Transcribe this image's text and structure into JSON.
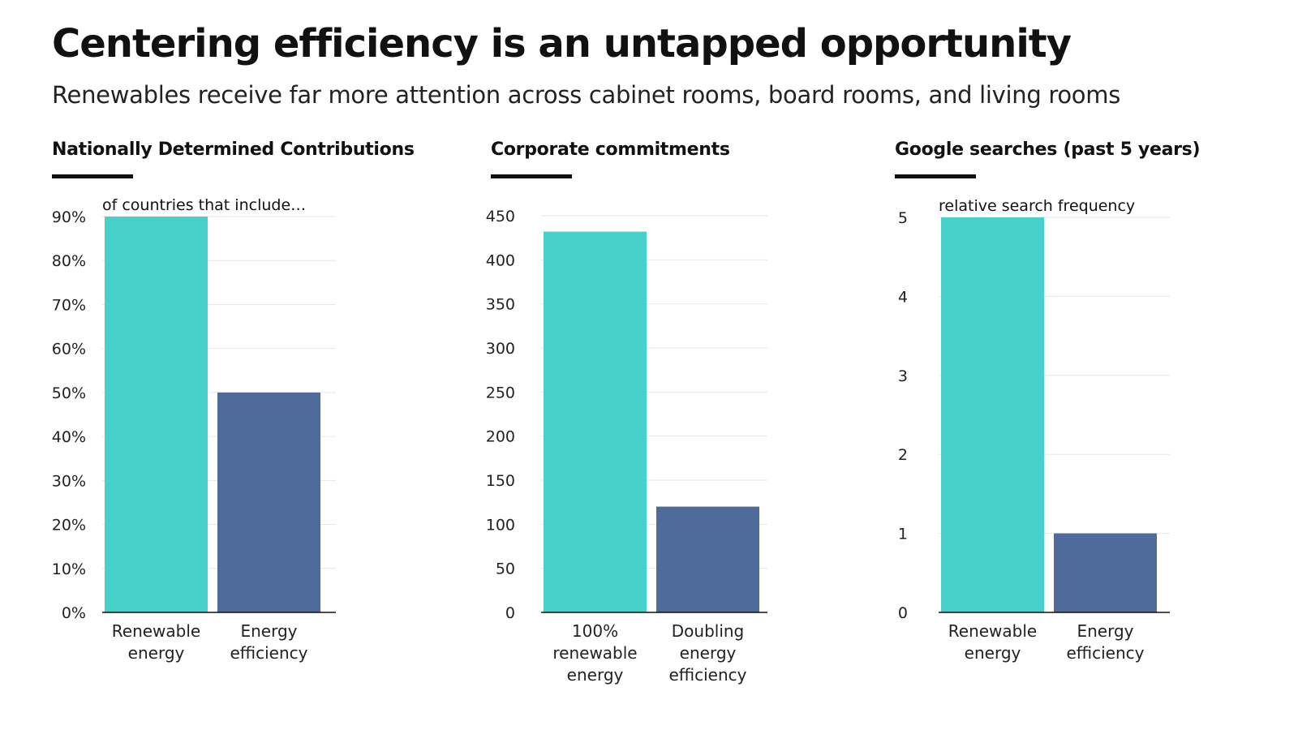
{
  "header": {
    "title": "Centering efficiency is an untapped opportunity",
    "subtitle": "Renewables receive far more attention across cabinet rooms, board rooms, and living rooms"
  },
  "colors": {
    "renewable": "#48D0CB",
    "efficiency": "#4E6B9B",
    "grid": "#e6e6e6",
    "axis": "#111111"
  },
  "chart_data": [
    {
      "type": "bar",
      "title": "Nationally Determined Contributions",
      "annotation": "of countries that include…",
      "categories": [
        [
          "Renewable",
          "energy"
        ],
        [
          "Energy",
          "efficiency"
        ]
      ],
      "values": [
        90,
        50
      ],
      "ylim": [
        0,
        90
      ],
      "yticks": [
        0,
        10,
        20,
        30,
        40,
        50,
        60,
        70,
        80,
        90
      ],
      "ytick_labels": [
        "0%",
        "10%",
        "20%",
        "30%",
        "40%",
        "50%",
        "60%",
        "70%",
        "80%",
        "90%"
      ],
      "grid": true
    },
    {
      "type": "bar",
      "title": "Corporate commitments",
      "annotation": "",
      "categories": [
        [
          "100%",
          "renewable",
          "energy"
        ],
        [
          "Doubling",
          "energy",
          "efficiency"
        ]
      ],
      "values": [
        432,
        120
      ],
      "ylim": [
        0,
        450
      ],
      "yticks": [
        0,
        50,
        100,
        150,
        200,
        250,
        300,
        350,
        400,
        450
      ],
      "ytick_labels": [
        "0",
        "50",
        "100",
        "150",
        "200",
        "250",
        "300",
        "350",
        "400",
        "450"
      ],
      "grid": true
    },
    {
      "type": "bar",
      "title": "Google searches (past 5 years)",
      "annotation": "relative search frequency",
      "categories": [
        [
          "Renewable",
          "energy"
        ],
        [
          "Energy",
          "efficiency"
        ]
      ],
      "values": [
        5,
        1
      ],
      "ylim": [
        0,
        5
      ],
      "yticks": [
        0,
        1,
        2,
        3,
        4,
        5
      ],
      "ytick_labels": [
        "0",
        "1",
        "2",
        "3",
        "4",
        "5"
      ],
      "grid": true
    }
  ]
}
